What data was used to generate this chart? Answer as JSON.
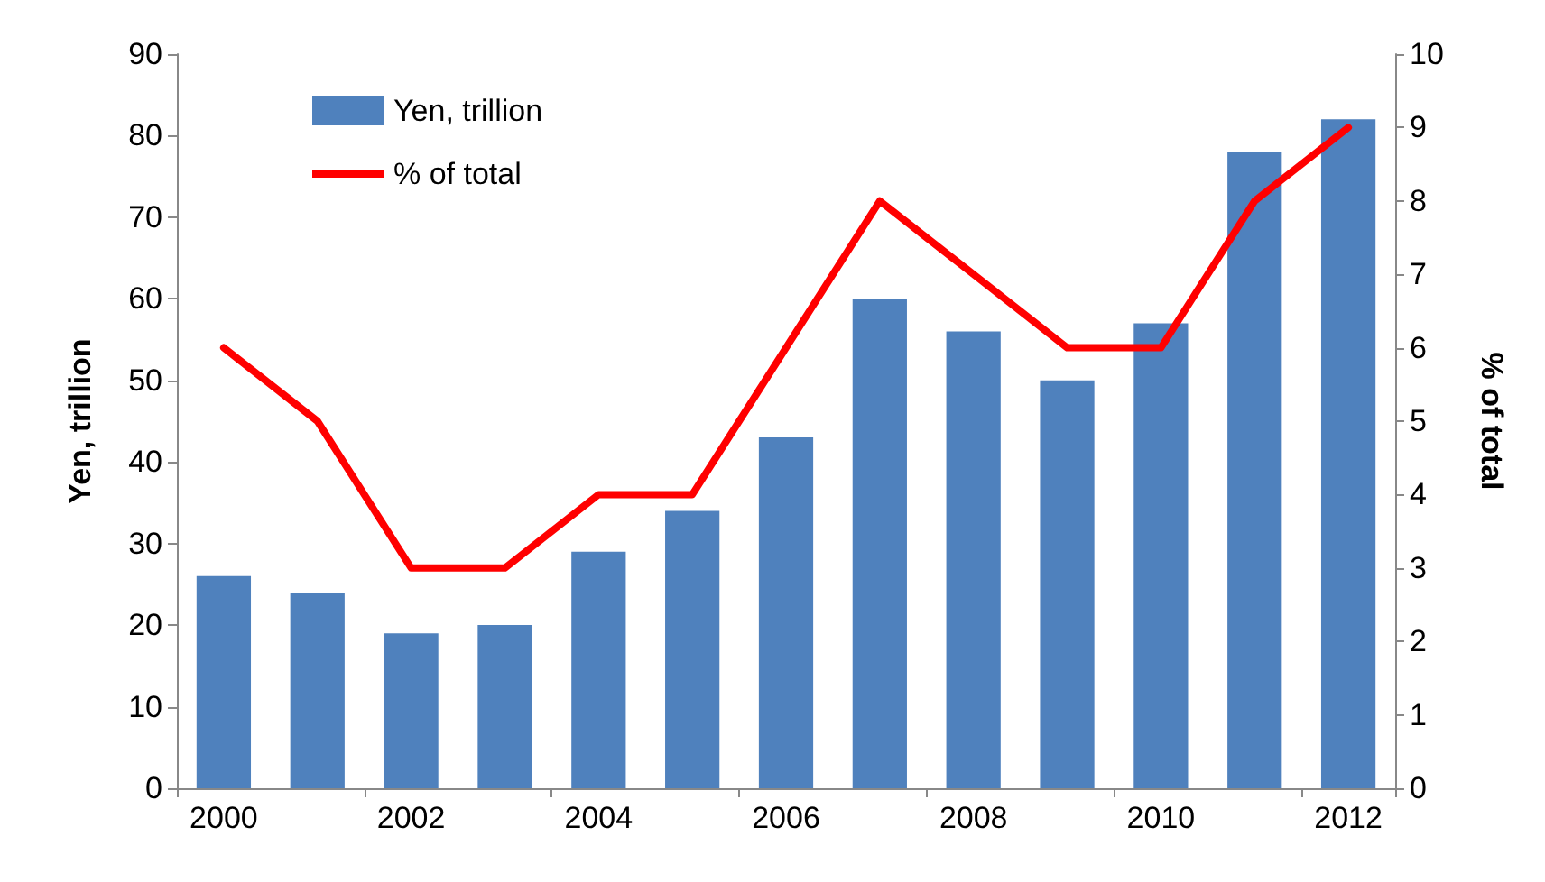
{
  "chart_data": {
    "type": "bar",
    "categories": [
      "2000",
      null,
      "2002",
      null,
      "2004",
      null,
      "2006",
      null,
      "2008",
      null,
      "2010",
      null,
      "2012"
    ],
    "series": [
      {
        "name": "Yen, trillion",
        "color": "#4f81bd",
        "values": [
          26,
          24,
          19,
          20,
          29,
          34,
          43,
          60,
          56,
          50,
          57,
          78,
          82
        ]
      },
      {
        "name": "% of total",
        "type": "line",
        "axis": "y2",
        "color": "#ff0000",
        "values": [
          6,
          5,
          3,
          3,
          4,
          4,
          6,
          8,
          7,
          6,
          6,
          8,
          9
        ]
      }
    ],
    "ylabel": "Yen, trillion",
    "y2label": "% of total",
    "ylim": [
      0,
      90
    ],
    "yticks": [
      0,
      10,
      20,
      30,
      40,
      50,
      60,
      70,
      80,
      90
    ],
    "y2lim": [
      0,
      10
    ],
    "y2ticks": [
      0,
      1,
      2,
      3,
      4,
      5,
      6,
      7,
      8,
      9,
      10
    ],
    "grid": false,
    "legend": "top left",
    "marker": "none",
    "line_style": "solid"
  }
}
